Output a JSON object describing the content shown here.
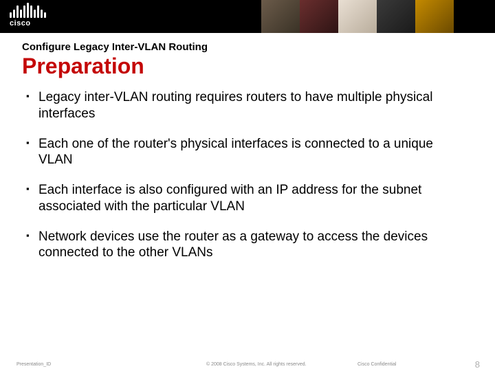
{
  "header": {
    "logo_text": "cisco",
    "bar_heights": [
      8,
      12,
      18,
      12,
      18,
      22,
      18,
      12,
      18,
      12,
      8
    ]
  },
  "subtitle": "Configure Legacy Inter-VLAN Routing",
  "title": "Preparation",
  "title_color": "#c40808",
  "body_color": "#000000",
  "background_color": "#ffffff",
  "bullets": [
    "Legacy inter-VLAN routing requires routers to have multiple physical interfaces",
    "Each one of the router's physical interfaces is connected to a unique VLAN",
    "Each interface is also configured with an IP address for the subnet associated with the particular VLAN",
    "Network devices use the router as a gateway to access the devices connected to the other VLANs"
  ],
  "footer": {
    "presentation_id": "Presentation_ID",
    "copyright": "© 2008 Cisco Systems, Inc. All rights reserved.",
    "confidential": "Cisco Confidential",
    "page_number": "8"
  },
  "typography": {
    "subtitle_fontsize": 15,
    "title_fontsize": 32,
    "bullet_fontsize": 19,
    "footer_fontsize": 7,
    "page_fontsize": 13
  }
}
